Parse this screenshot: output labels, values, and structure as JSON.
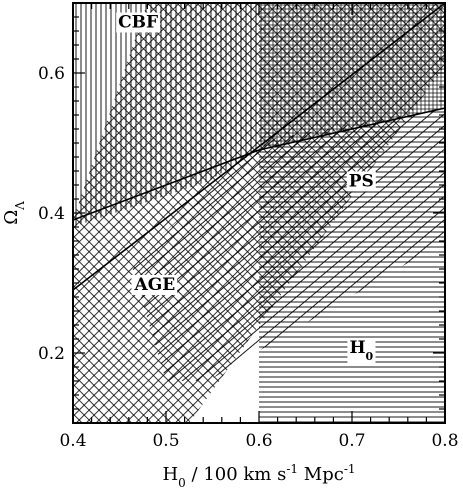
{
  "chart_data": {
    "type": "area",
    "title": "",
    "xlabel_parts": [
      "H",
      "0",
      " / 100 km s",
      "-1",
      " Mpc",
      "-1"
    ],
    "ylabel_parts": [
      "Ω",
      "Λ"
    ],
    "xlim": [
      0.4,
      0.8
    ],
    "ylim": [
      0.1,
      0.7
    ],
    "xticks": [
      0.4,
      0.5,
      0.6,
      0.7,
      0.8
    ],
    "xtick_labels": [
      "0.4",
      "0.5",
      "0.6",
      "0.7",
      "0.8"
    ],
    "yticks": [
      0.2,
      0.4,
      0.6
    ],
    "ytick_labels": [
      "0.2",
      "0.4",
      "0.6"
    ],
    "grid": false,
    "series": [
      {
        "name": "CBF",
        "hatch": "vertical",
        "label_at": [
          0.47,
          0.665
        ],
        "polygon": [
          [
            0.4,
            0.7
          ],
          [
            0.6,
            0.7
          ],
          [
            0.6,
            0.49
          ],
          [
            0.545,
            0.445
          ],
          [
            0.4,
            0.38
          ]
        ]
      },
      {
        "name": "AGE",
        "hatch": "diagonal-cross",
        "label_at": [
          0.488,
          0.29
        ],
        "polygon": [
          [
            0.4,
            0.39
          ],
          [
            0.48,
            0.7
          ],
          [
            0.8,
            0.7
          ],
          [
            0.8,
            0.61
          ],
          [
            0.525,
            0.1
          ],
          [
            0.4,
            0.1
          ]
        ]
      },
      {
        "name": "PS",
        "hatch": "diagonal",
        "label_at": [
          0.71,
          0.438
        ],
        "polygon": [
          [
            0.462,
            0.33
          ],
          [
            0.61,
            0.505
          ],
          [
            0.8,
            0.55
          ],
          [
            0.8,
            0.36
          ],
          [
            0.545,
            0.16
          ],
          [
            0.5,
            0.16
          ]
        ]
      },
      {
        "name_parts": [
          "H",
          "0"
        ],
        "hatch": "horizontal",
        "label_at": [
          0.71,
          0.2
        ],
        "polygon": [
          [
            0.6,
            0.1
          ],
          [
            0.6,
            0.49
          ],
          [
            0.8,
            0.55
          ],
          [
            0.8,
            0.1
          ]
        ]
      },
      {
        "name": "fine-grid-region",
        "hatch": "grid",
        "polygon": [
          [
            0.6,
            0.7
          ],
          [
            0.8,
            0.7
          ],
          [
            0.8,
            0.55
          ],
          [
            0.6,
            0.49
          ]
        ]
      }
    ],
    "curves": [
      {
        "name": "upper-boundary",
        "points": [
          [
            0.4,
            0.39
          ],
          [
            0.6,
            0.49
          ],
          [
            0.8,
            0.55
          ]
        ]
      },
      {
        "name": "diagonal-line",
        "points": [
          [
            0.4,
            0.29
          ],
          [
            0.8,
            0.7
          ]
        ]
      }
    ]
  }
}
